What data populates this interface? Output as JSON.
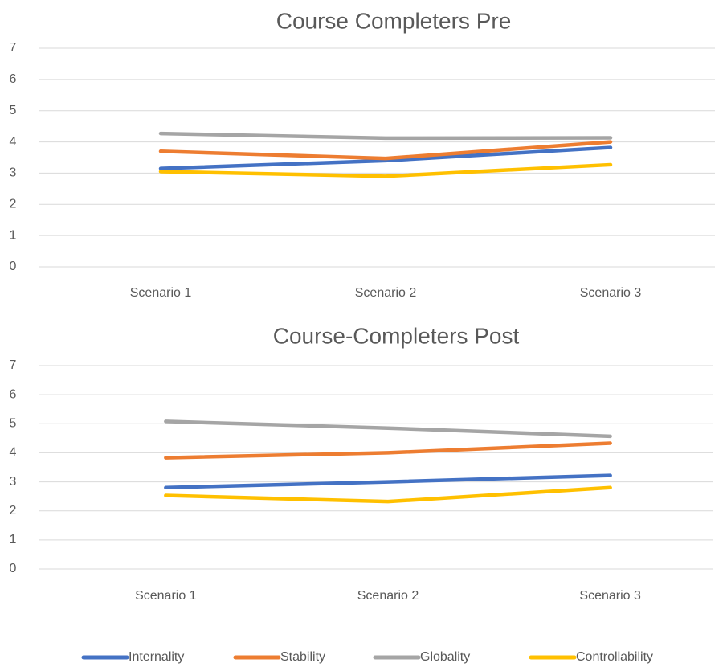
{
  "chart_data": [
    {
      "type": "line",
      "title": "Course Completers Pre",
      "categories": [
        "Scenario 1",
        "Scenario 2",
        "Scenario 3"
      ],
      "series": [
        {
          "color": "#4472c4",
          "values": [
            3.15,
            3.4,
            3.82
          ]
        },
        {
          "color": "#ed7d31",
          "values": [
            3.7,
            3.47,
            4.0
          ]
        },
        {
          "color": "#a5a5a5",
          "values": [
            4.27,
            4.12,
            4.13
          ]
        },
        {
          "color": "#ffc000",
          "values": [
            3.05,
            2.9,
            3.27
          ]
        }
      ],
      "ylim": [
        0,
        7
      ],
      "yticks": [
        0,
        1,
        2,
        3,
        4,
        5,
        6,
        7
      ],
      "grid": true
    },
    {
      "type": "line",
      "title": "Course-Completers Post",
      "categories": [
        "Scenario 1",
        "Scenario 2",
        "Scenario 3"
      ],
      "series": [
        {
          "color": "#4472c4",
          "values": [
            2.8,
            3.0,
            3.22
          ]
        },
        {
          "color": "#ed7d31",
          "values": [
            3.83,
            4.0,
            4.33
          ]
        },
        {
          "color": "#a5a5a5",
          "values": [
            5.08,
            4.85,
            4.57
          ]
        },
        {
          "color": "#ffc000",
          "values": [
            2.53,
            2.32,
            2.8
          ]
        }
      ],
      "ylim": [
        0,
        7
      ],
      "yticks": [
        0,
        1,
        2,
        3,
        4,
        5,
        6,
        7
      ],
      "grid": true
    }
  ],
  "legend": [
    "Internality",
    "Stability",
    "Globality",
    "Controllability"
  ]
}
